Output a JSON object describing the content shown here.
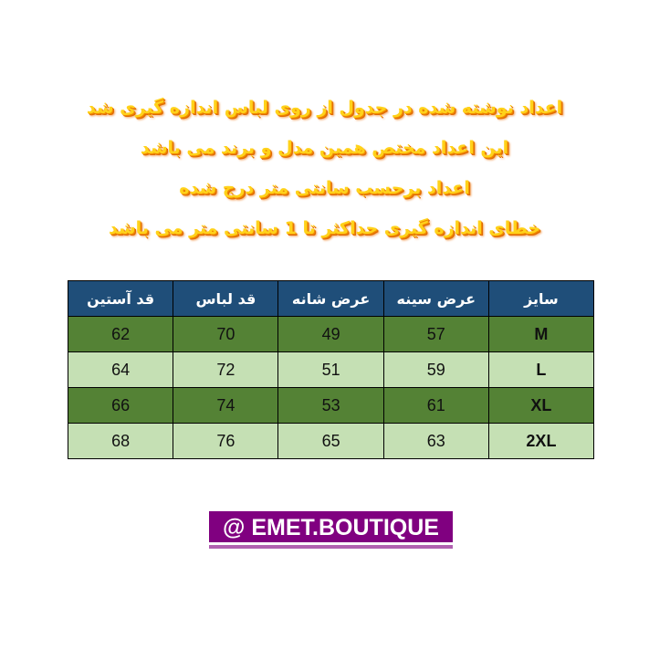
{
  "notes": [
    "اعداد نوشته شده در جدول از روی لباس اندازه گیری شد",
    "این اعداد مختص همین مدل و برند می باشد",
    "اعداد برحسب سانتی متر درج شده",
    "خطای اندازه گیری حداکثر تا 1 سانتی متر می باشد"
  ],
  "table": {
    "headers": [
      "سایز",
      "عرض سینه",
      "عرض شانه",
      "قد لباس",
      "قد آستین"
    ],
    "rows": [
      [
        "M",
        "57",
        "49",
        "70",
        "62"
      ],
      [
        "L",
        "59",
        "51",
        "72",
        "64"
      ],
      [
        "XL",
        "61",
        "53",
        "74",
        "66"
      ],
      [
        "2XL",
        "63",
        "65",
        "76",
        "68"
      ]
    ]
  },
  "brand": "@ EMET.BOUTIQUE",
  "colors": {
    "header": "#1f4e79",
    "row_dark": "#548235",
    "row_light": "#c5e0b4",
    "brand_bg": "#800080",
    "note_text": "#ffd21a"
  }
}
